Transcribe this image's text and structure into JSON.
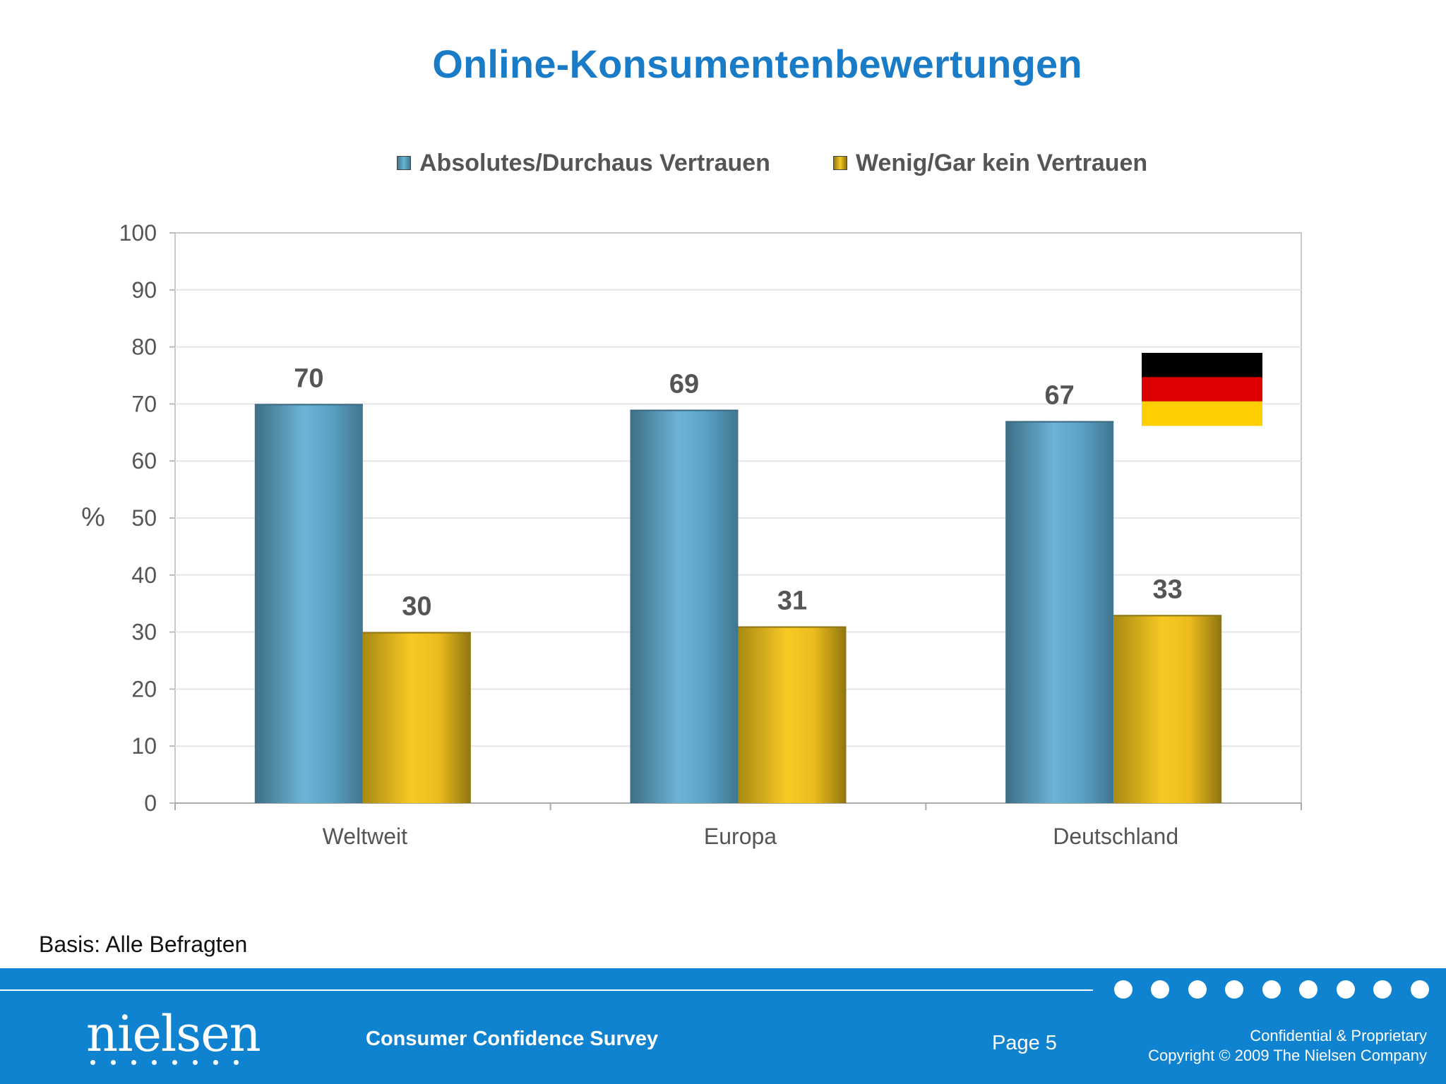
{
  "title": "Online-Konsumentenbewertungen",
  "basis": "Basis: Alle Befragten",
  "footer": {
    "logo_text": "nielsen",
    "survey": "Consumer Confidence Survey",
    "page": "Page 5",
    "confidential": "Confidential & Proprietary",
    "copyright": "Copyright © 2009 The Nielsen Company"
  },
  "flag": {
    "icon": "germany-flag-icon",
    "colors": [
      "#000000",
      "#dd0000",
      "#ffce00"
    ]
  },
  "chart_data": {
    "type": "bar",
    "categories": [
      "Weltweit",
      "Europa",
      "Deutschland"
    ],
    "series": [
      {
        "name": "Absolutes/Durchaus Vertrauen",
        "values": [
          70,
          69,
          67
        ],
        "color": "#5fa8c9"
      },
      {
        "name": "Wenig/Gar kein Vertrauen",
        "values": [
          30,
          31,
          33
        ],
        "color": "#f2c320"
      }
    ],
    "ylabel": "%",
    "xlabel": "",
    "ylim": [
      0,
      100
    ],
    "yticks": [
      0,
      10,
      20,
      30,
      40,
      50,
      60,
      70,
      80,
      90,
      100
    ],
    "grid": true,
    "legend": "top",
    "data_labels": true
  }
}
